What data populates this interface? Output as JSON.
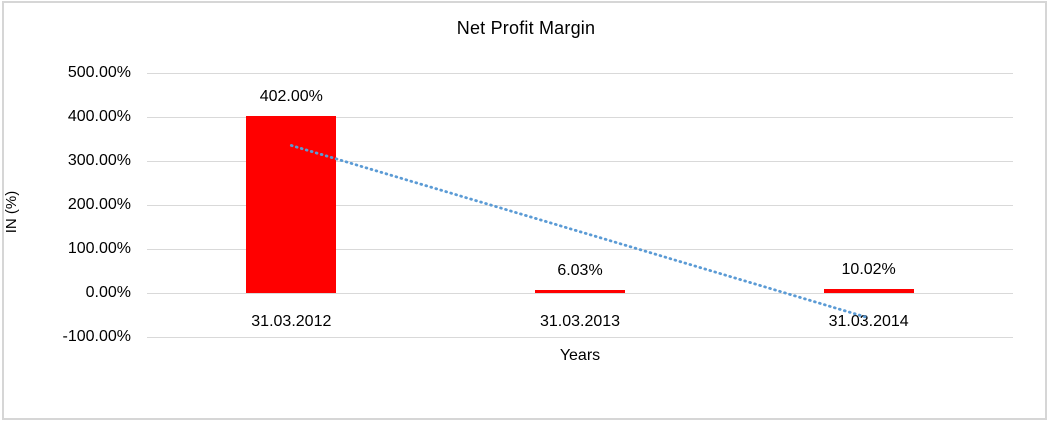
{
  "chart_data": {
    "type": "bar",
    "title": "Net Profit Margin",
    "xlabel": "Years",
    "ylabel": "IN (%)",
    "categories": [
      "31.03.2012",
      "31.03.2013",
      "31.03.2014"
    ],
    "values": [
      402.0,
      6.03,
      10.02
    ],
    "data_labels": [
      "402.00%",
      "6.03%",
      "10.02%"
    ],
    "y_ticks": [
      {
        "label": "500.00%",
        "value": 500
      },
      {
        "label": "400.00%",
        "value": 400
      },
      {
        "label": "300.00%",
        "value": 300
      },
      {
        "label": "200.00%",
        "value": 200
      },
      {
        "label": "100.00%",
        "value": 100
      },
      {
        "label": "0.00%",
        "value": 0
      },
      {
        "label": "-100.00%",
        "value": -100
      }
    ],
    "ylim": [
      -100,
      500
    ],
    "grid": true,
    "legend": false,
    "bar_color": "#ff0000",
    "gridline_color": "#d9d9d9",
    "frame_border_color": "#d6d6d6",
    "trendline": {
      "type": "linear",
      "style": "dotted",
      "color": "#5b9bd5",
      "start_value": 335.3,
      "end_value": -56.6
    }
  }
}
